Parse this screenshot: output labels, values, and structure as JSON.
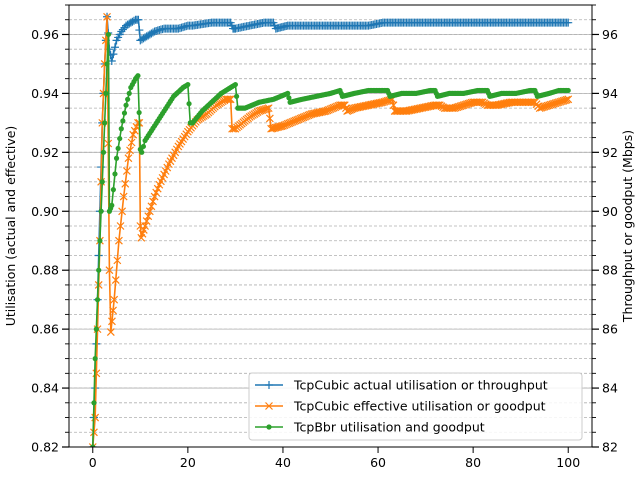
{
  "chart_data": {
    "type": "line",
    "title": "",
    "xlabel": "",
    "ylabel_left": "Utilisation (actual and effective)",
    "ylabel_right": "Throughput or goodput (Mbps)",
    "xlim": [
      -5,
      105
    ],
    "ylim_left": [
      0.82,
      0.97
    ],
    "ylim_right": [
      82,
      97
    ],
    "x_ticks": [
      0,
      20,
      40,
      60,
      80,
      100
    ],
    "x_tick_labels": [
      "0",
      "20",
      "40",
      "60",
      "80",
      "100"
    ],
    "y_left_ticks": [
      0.82,
      0.84,
      0.86,
      0.88,
      0.9,
      0.92,
      0.94,
      0.96
    ],
    "y_left_tick_labels": [
      "0.82",
      "0.84",
      "0.86",
      "0.88",
      "0.90",
      "0.92",
      "0.94",
      "0.96"
    ],
    "y_right_ticks": [
      82,
      84,
      86,
      88,
      90,
      92,
      94,
      96
    ],
    "y_right_tick_labels": [
      "82",
      "84",
      "86",
      "88",
      "90",
      "92",
      "94",
      "96"
    ],
    "grid": "horizontal, solid major and dashed minor",
    "legend_position": "bottom-right",
    "series": [
      {
        "name": "TcpCubic actual utilisation or throughput",
        "color": "#1f77b4",
        "marker": "plus",
        "points": [
          [
            0,
            0.82
          ],
          [
            0.5,
            0.84
          ],
          [
            1,
            0.87
          ],
          [
            1.5,
            0.9
          ],
          [
            2,
            0.93
          ],
          [
            2.5,
            0.95
          ],
          [
            3,
            0.966
          ],
          [
            3.5,
            0.955
          ],
          [
            4,
            0.951
          ],
          [
            5,
            0.958
          ],
          [
            6,
            0.961
          ],
          [
            7,
            0.963
          ],
          [
            8,
            0.964
          ],
          [
            9,
            0.965
          ],
          [
            9.6,
            0.965
          ],
          [
            10,
            0.958
          ],
          [
            11,
            0.959
          ],
          [
            13,
            0.961
          ],
          [
            15,
            0.962
          ],
          [
            18,
            0.962
          ],
          [
            20,
            0.963
          ],
          [
            21,
            0.963
          ],
          [
            25,
            0.964
          ],
          [
            28,
            0.964
          ],
          [
            29,
            0.964
          ],
          [
            29.5,
            0.962
          ],
          [
            30,
            0.962
          ],
          [
            33,
            0.963
          ],
          [
            36,
            0.964
          ],
          [
            38,
            0.964
          ],
          [
            38.5,
            0.962
          ],
          [
            41,
            0.963
          ],
          [
            45,
            0.963
          ],
          [
            48,
            0.963
          ],
          [
            52,
            0.963
          ],
          [
            55,
            0.963
          ],
          [
            58,
            0.963
          ],
          [
            61,
            0.964
          ],
          [
            64,
            0.964
          ],
          [
            68,
            0.964
          ],
          [
            72,
            0.964
          ],
          [
            76,
            0.964
          ],
          [
            80,
            0.964
          ],
          [
            84,
            0.964
          ],
          [
            88,
            0.964
          ],
          [
            92,
            0.964
          ],
          [
            96,
            0.964
          ],
          [
            100,
            0.964
          ]
        ]
      },
      {
        "name": "TcpCubic effective utilisation or goodput",
        "color": "#ff7f0e",
        "marker": "x",
        "points": [
          [
            0,
            0.82
          ],
          [
            0.5,
            0.83
          ],
          [
            1,
            0.86
          ],
          [
            1.5,
            0.89
          ],
          [
            2,
            0.93
          ],
          [
            2.5,
            0.95
          ],
          [
            3,
            0.966
          ],
          [
            3.5,
            0.88
          ],
          [
            3.8,
            0.859
          ],
          [
            4.5,
            0.87
          ],
          [
            5.5,
            0.89
          ],
          [
            6.5,
            0.905
          ],
          [
            7.5,
            0.918
          ],
          [
            8.5,
            0.926
          ],
          [
            9.5,
            0.93
          ],
          [
            9.8,
            0.93
          ],
          [
            10,
            0.895
          ],
          [
            10.2,
            0.891
          ],
          [
            11,
            0.895
          ],
          [
            12,
            0.9
          ],
          [
            13,
            0.905
          ],
          [
            14,
            0.909
          ],
          [
            16,
            0.916
          ],
          [
            18,
            0.922
          ],
          [
            20,
            0.927
          ],
          [
            22,
            0.931
          ],
          [
            24,
            0.933
          ],
          [
            26,
            0.936
          ],
          [
            28,
            0.938
          ],
          [
            29,
            0.938
          ],
          [
            29.3,
            0.928
          ],
          [
            30,
            0.928
          ],
          [
            33,
            0.932
          ],
          [
            35,
            0.934
          ],
          [
            37,
            0.935
          ],
          [
            37.5,
            0.928
          ],
          [
            40,
            0.929
          ],
          [
            43,
            0.931
          ],
          [
            46,
            0.933
          ],
          [
            49,
            0.934
          ],
          [
            52,
            0.936
          ],
          [
            53,
            0.936
          ],
          [
            53.5,
            0.934
          ],
          [
            55,
            0.935
          ],
          [
            58,
            0.936
          ],
          [
            61,
            0.937
          ],
          [
            63,
            0.938
          ],
          [
            63.5,
            0.934
          ],
          [
            66,
            0.934
          ],
          [
            69,
            0.935
          ],
          [
            72,
            0.936
          ],
          [
            73,
            0.936
          ],
          [
            74,
            0.935
          ],
          [
            76,
            0.935
          ],
          [
            78,
            0.936
          ],
          [
            80,
            0.937
          ],
          [
            82,
            0.937
          ],
          [
            83,
            0.936
          ],
          [
            85,
            0.936
          ],
          [
            88,
            0.937
          ],
          [
            91,
            0.937
          ],
          [
            93,
            0.937
          ],
          [
            94,
            0.935
          ],
          [
            96,
            0.936
          ],
          [
            98,
            0.937
          ],
          [
            100,
            0.938
          ]
        ]
      },
      {
        "name": "TcpBbr utilisation and goodput",
        "color": "#2ca02c",
        "marker": "dot",
        "points": [
          [
            0,
            0.82
          ],
          [
            0.5,
            0.85
          ],
          [
            1,
            0.87
          ],
          [
            1.5,
            0.89
          ],
          [
            2,
            0.91
          ],
          [
            2.5,
            0.93
          ],
          [
            3,
            0.95
          ],
          [
            3.3,
            0.96
          ],
          [
            3.5,
            0.9
          ],
          [
            4,
            0.902
          ],
          [
            5,
            0.918
          ],
          [
            6,
            0.928
          ],
          [
            7,
            0.936
          ],
          [
            8,
            0.942
          ],
          [
            9,
            0.945
          ],
          [
            9.5,
            0.946
          ],
          [
            10,
            0.921
          ],
          [
            10.3,
            0.92
          ],
          [
            11,
            0.924
          ],
          [
            13,
            0.929
          ],
          [
            15,
            0.934
          ],
          [
            17,
            0.939
          ],
          [
            19,
            0.942
          ],
          [
            20,
            0.943
          ],
          [
            20.5,
            0.93
          ],
          [
            21,
            0.93
          ],
          [
            23,
            0.934
          ],
          [
            25,
            0.937
          ],
          [
            27,
            0.94
          ],
          [
            29,
            0.942
          ],
          [
            30,
            0.943
          ],
          [
            30.5,
            0.935
          ],
          [
            32,
            0.935
          ],
          [
            35,
            0.937
          ],
          [
            38,
            0.938
          ],
          [
            41,
            0.94
          ],
          [
            41.5,
            0.937
          ],
          [
            44,
            0.938
          ],
          [
            47,
            0.939
          ],
          [
            50,
            0.94
          ],
          [
            52,
            0.941
          ],
          [
            52.5,
            0.939
          ],
          [
            55,
            0.94
          ],
          [
            58,
            0.941
          ],
          [
            61,
            0.941
          ],
          [
            62,
            0.941
          ],
          [
            62.5,
            0.939
          ],
          [
            65,
            0.94
          ],
          [
            68,
            0.94
          ],
          [
            71,
            0.941
          ],
          [
            72,
            0.941
          ],
          [
            72.5,
            0.939
          ],
          [
            75,
            0.94
          ],
          [
            78,
            0.94
          ],
          [
            81,
            0.941
          ],
          [
            83,
            0.941
          ],
          [
            83.5,
            0.939
          ],
          [
            86,
            0.94
          ],
          [
            89,
            0.94
          ],
          [
            92,
            0.941
          ],
          [
            93,
            0.941
          ],
          [
            93.5,
            0.939
          ],
          [
            96,
            0.94
          ],
          [
            98,
            0.941
          ],
          [
            100,
            0.941
          ]
        ]
      }
    ]
  }
}
